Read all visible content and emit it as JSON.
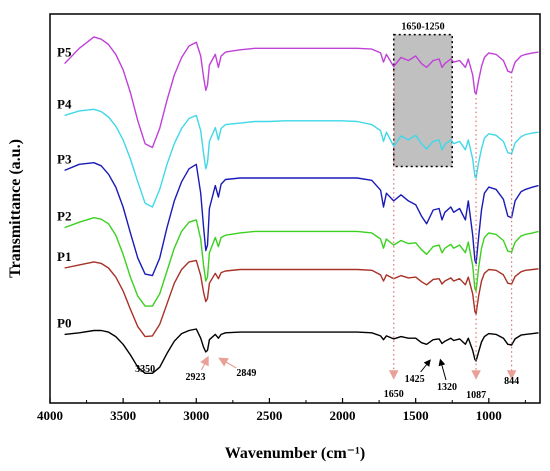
{
  "chart_data": {
    "type": "line",
    "xlabel": "Wavenumber (cm⁻¹)",
    "ylabel": "Transmittance (a.u.)",
    "xlim": [
      4000,
      650
    ],
    "x_reversed": true,
    "x_ticks": [
      4000,
      3500,
      3000,
      2500,
      2000,
      1500,
      1000
    ],
    "series": [
      {
        "name": "P5",
        "color": "#c040d8",
        "x": [
          3900,
          3800,
          3700,
          3650,
          3600,
          3550,
          3500,
          3450,
          3400,
          3350,
          3300,
          3250,
          3200,
          3150,
          3100,
          3050,
          3000,
          2970,
          2950,
          2935,
          2923,
          2910,
          2870,
          2849,
          2830,
          2800,
          2700,
          2600,
          2500,
          2400,
          2300,
          2200,
          2100,
          2000,
          1900,
          1800,
          1740,
          1720,
          1700,
          1650,
          1600,
          1550,
          1500,
          1460,
          1425,
          1380,
          1340,
          1320,
          1300,
          1260,
          1240,
          1200,
          1160,
          1140,
          1110,
          1095,
          1087,
          1070,
          1050,
          1030,
          1000,
          950,
          900,
          870,
          844,
          820,
          780,
          750,
          700,
          660
        ],
        "y": [
          4.1,
          4.3,
          4.45,
          4.42,
          4.35,
          4.22,
          4.02,
          3.72,
          3.35,
          3.05,
          3.0,
          3.25,
          3.62,
          3.95,
          4.18,
          4.33,
          4.38,
          4.2,
          3.92,
          3.75,
          3.82,
          4.08,
          4.22,
          4.05,
          4.2,
          4.25,
          4.28,
          4.3,
          4.3,
          4.3,
          4.3,
          4.3,
          4.3,
          4.3,
          4.3,
          4.29,
          4.24,
          4.12,
          4.22,
          4.06,
          4.18,
          4.14,
          4.2,
          4.1,
          4.05,
          4.14,
          4.16,
          4.05,
          4.1,
          4.16,
          4.12,
          4.14,
          4.05,
          4.16,
          3.95,
          3.72,
          3.7,
          3.88,
          4.06,
          4.18,
          4.24,
          4.22,
          4.14,
          4.0,
          3.98,
          4.12,
          4.2,
          4.22,
          4.24,
          4.25
        ]
      },
      {
        "name": "P4",
        "color": "#40d8e8",
        "x": [
          3900,
          3800,
          3700,
          3650,
          3600,
          3550,
          3500,
          3450,
          3400,
          3350,
          3300,
          3250,
          3200,
          3150,
          3100,
          3050,
          3000,
          2970,
          2950,
          2935,
          2923,
          2910,
          2870,
          2849,
          2830,
          2800,
          2700,
          2600,
          2500,
          2400,
          2300,
          2200,
          2100,
          2000,
          1900,
          1800,
          1740,
          1720,
          1700,
          1650,
          1600,
          1550,
          1500,
          1460,
          1425,
          1380,
          1340,
          1320,
          1300,
          1260,
          1240,
          1200,
          1160,
          1140,
          1110,
          1095,
          1087,
          1070,
          1050,
          1030,
          1000,
          950,
          900,
          870,
          844,
          820,
          780,
          750,
          700,
          660
        ],
        "y": [
          3.42,
          3.48,
          3.5,
          3.47,
          3.4,
          3.28,
          3.1,
          2.85,
          2.55,
          2.27,
          2.22,
          2.45,
          2.78,
          3.05,
          3.25,
          3.38,
          3.42,
          3.22,
          2.92,
          2.72,
          2.8,
          3.08,
          3.26,
          3.1,
          3.25,
          3.3,
          3.32,
          3.34,
          3.34,
          3.35,
          3.35,
          3.35,
          3.35,
          3.35,
          3.34,
          3.3,
          3.22,
          3.08,
          3.2,
          3.02,
          3.15,
          3.1,
          3.16,
          3.05,
          2.98,
          3.08,
          3.1,
          2.97,
          3.04,
          3.1,
          3.05,
          3.08,
          2.97,
          3.1,
          2.85,
          2.62,
          2.6,
          2.8,
          2.98,
          3.12,
          3.18,
          3.16,
          3.08,
          2.93,
          2.92,
          3.06,
          3.14,
          3.17,
          3.19,
          3.2
        ]
      },
      {
        "name": "P3",
        "color": "#1a1ab8",
        "x": [
          3900,
          3800,
          3700,
          3650,
          3600,
          3550,
          3500,
          3450,
          3400,
          3350,
          3300,
          3250,
          3200,
          3150,
          3100,
          3050,
          3000,
          2970,
          2950,
          2935,
          2923,
          2910,
          2870,
          2849,
          2830,
          2800,
          2700,
          2600,
          2500,
          2400,
          2300,
          2200,
          2100,
          2000,
          1900,
          1800,
          1740,
          1720,
          1700,
          1650,
          1600,
          1550,
          1500,
          1460,
          1425,
          1380,
          1340,
          1320,
          1300,
          1260,
          1240,
          1200,
          1160,
          1140,
          1110,
          1095,
          1087,
          1070,
          1050,
          1030,
          1000,
          950,
          900,
          870,
          844,
          820,
          780,
          750,
          700,
          660
        ],
        "y": [
          2.7,
          2.78,
          2.8,
          2.76,
          2.65,
          2.48,
          2.22,
          1.88,
          1.55,
          1.34,
          1.32,
          1.55,
          1.95,
          2.3,
          2.55,
          2.72,
          2.78,
          2.4,
          1.95,
          1.65,
          1.72,
          2.2,
          2.5,
          2.35,
          2.52,
          2.58,
          2.6,
          2.6,
          2.6,
          2.6,
          2.6,
          2.6,
          2.6,
          2.6,
          2.6,
          2.57,
          2.44,
          2.22,
          2.4,
          2.3,
          2.38,
          2.3,
          2.25,
          2.1,
          2.0,
          2.18,
          2.2,
          2.05,
          2.15,
          2.22,
          2.15,
          2.2,
          2.05,
          2.3,
          1.85,
          1.52,
          1.48,
          1.82,
          2.18,
          2.4,
          2.48,
          2.45,
          2.32,
          2.1,
          2.08,
          2.3,
          2.42,
          2.45,
          2.48,
          2.5
        ]
      },
      {
        "name": "P2",
        "color": "#3cd020",
        "x": [
          3900,
          3800,
          3700,
          3650,
          3600,
          3550,
          3500,
          3450,
          3400,
          3350,
          3300,
          3250,
          3200,
          3150,
          3100,
          3050,
          3000,
          2970,
          2950,
          2935,
          2923,
          2910,
          2870,
          2849,
          2830,
          2800,
          2700,
          2600,
          2500,
          2400,
          2300,
          2200,
          2100,
          2000,
          1900,
          1800,
          1740,
          1720,
          1700,
          1650,
          1600,
          1550,
          1500,
          1460,
          1425,
          1380,
          1340,
          1320,
          1300,
          1260,
          1240,
          1200,
          1160,
          1140,
          1110,
          1095,
          1087,
          1070,
          1050,
          1030,
          1000,
          950,
          900,
          870,
          844,
          820,
          780,
          750,
          700,
          660
        ],
        "y": [
          1.95,
          2.02,
          2.08,
          2.06,
          2.0,
          1.85,
          1.6,
          1.3,
          1.05,
          0.92,
          0.92,
          1.08,
          1.38,
          1.68,
          1.9,
          2.02,
          2.05,
          1.8,
          1.45,
          1.25,
          1.3,
          1.62,
          1.82,
          1.7,
          1.82,
          1.85,
          1.88,
          1.9,
          1.9,
          1.9,
          1.9,
          1.9,
          1.9,
          1.9,
          1.9,
          1.88,
          1.8,
          1.68,
          1.8,
          1.72,
          1.78,
          1.74,
          1.75,
          1.66,
          1.6,
          1.7,
          1.72,
          1.62,
          1.68,
          1.73,
          1.68,
          1.72,
          1.62,
          1.76,
          1.45,
          1.15,
          1.12,
          1.42,
          1.68,
          1.82,
          1.88,
          1.86,
          1.78,
          1.64,
          1.63,
          1.76,
          1.84,
          1.86,
          1.88,
          1.9
        ]
      },
      {
        "name": "P1",
        "color": "#a83228",
        "x": [
          3900,
          3800,
          3700,
          3650,
          3600,
          3550,
          3500,
          3450,
          3400,
          3350,
          3300,
          3250,
          3200,
          3150,
          3100,
          3050,
          3000,
          2970,
          2950,
          2935,
          2923,
          2910,
          2870,
          2849,
          2830,
          2800,
          2700,
          2600,
          2500,
          2400,
          2300,
          2200,
          2100,
          2000,
          1900,
          1800,
          1740,
          1720,
          1700,
          1650,
          1600,
          1550,
          1500,
          1460,
          1425,
          1380,
          1340,
          1320,
          1300,
          1260,
          1240,
          1200,
          1160,
          1140,
          1110,
          1095,
          1087,
          1070,
          1050,
          1030,
          1000,
          950,
          900,
          870,
          844,
          820,
          780,
          750,
          700,
          660
        ],
        "y": [
          1.42,
          1.46,
          1.5,
          1.48,
          1.42,
          1.3,
          1.12,
          0.88,
          0.65,
          0.52,
          0.53,
          0.68,
          0.95,
          1.22,
          1.4,
          1.5,
          1.52,
          1.32,
          1.1,
          0.98,
          1.02,
          1.22,
          1.35,
          1.28,
          1.36,
          1.38,
          1.4,
          1.4,
          1.4,
          1.4,
          1.4,
          1.4,
          1.4,
          1.4,
          1.4,
          1.39,
          1.33,
          1.25,
          1.33,
          1.28,
          1.32,
          1.29,
          1.3,
          1.24,
          1.2,
          1.27,
          1.28,
          1.21,
          1.25,
          1.29,
          1.25,
          1.28,
          1.2,
          1.3,
          1.08,
          0.85,
          0.82,
          1.05,
          1.25,
          1.35,
          1.4,
          1.39,
          1.33,
          1.22,
          1.21,
          1.31,
          1.37,
          1.39,
          1.4,
          1.41
        ]
      },
      {
        "name": "P0",
        "color": "#000000",
        "x": [
          3900,
          3800,
          3700,
          3650,
          3600,
          3550,
          3500,
          3450,
          3400,
          3350,
          3300,
          3250,
          3200,
          3150,
          3100,
          3050,
          3000,
          2970,
          2950,
          2935,
          2923,
          2910,
          2870,
          2849,
          2830,
          2800,
          2700,
          2600,
          2500,
          2400,
          2300,
          2200,
          2100,
          2000,
          1900,
          1800,
          1740,
          1720,
          1700,
          1650,
          1600,
          1550,
          1500,
          1460,
          1425,
          1380,
          1340,
          1320,
          1300,
          1260,
          1240,
          1200,
          1160,
          1140,
          1110,
          1095,
          1087,
          1070,
          1050,
          1030,
          1000,
          950,
          900,
          870,
          844,
          820,
          780,
          750,
          700,
          660
        ],
        "y": [
          0.55,
          0.57,
          0.6,
          0.6,
          0.58,
          0.52,
          0.42,
          0.28,
          0.12,
          0.04,
          0.04,
          0.12,
          0.3,
          0.46,
          0.56,
          0.6,
          0.62,
          0.5,
          0.38,
          0.32,
          0.34,
          0.48,
          0.55,
          0.5,
          0.55,
          0.57,
          0.58,
          0.58,
          0.58,
          0.58,
          0.58,
          0.58,
          0.58,
          0.58,
          0.58,
          0.57,
          0.53,
          0.48,
          0.53,
          0.49,
          0.52,
          0.5,
          0.5,
          0.44,
          0.42,
          0.48,
          0.49,
          0.43,
          0.46,
          0.5,
          0.47,
          0.49,
          0.42,
          0.5,
          0.34,
          0.22,
          0.2,
          0.32,
          0.45,
          0.52,
          0.56,
          0.55,
          0.5,
          0.42,
          0.41,
          0.49,
          0.54,
          0.55,
          0.56,
          0.57
        ]
      }
    ],
    "peak_labels": [
      {
        "text": "3350",
        "x": 3350
      },
      {
        "text": "2923",
        "x": 2923
      },
      {
        "text": "2849",
        "x": 2849
      },
      {
        "text": "1650",
        "x": 1650
      },
      {
        "text": "1425",
        "x": 1425
      },
      {
        "text": "1320",
        "x": 1320
      },
      {
        "text": "1087",
        "x": 1087
      },
      {
        "text": "844",
        "x": 844
      }
    ],
    "marker_lines": [
      1650,
      1087,
      844
    ],
    "highlight_box": {
      "label": "1650-1250",
      "x_range": [
        1650,
        1250
      ]
    },
    "grid": false,
    "legend": "labels placed at left next to each trace"
  }
}
